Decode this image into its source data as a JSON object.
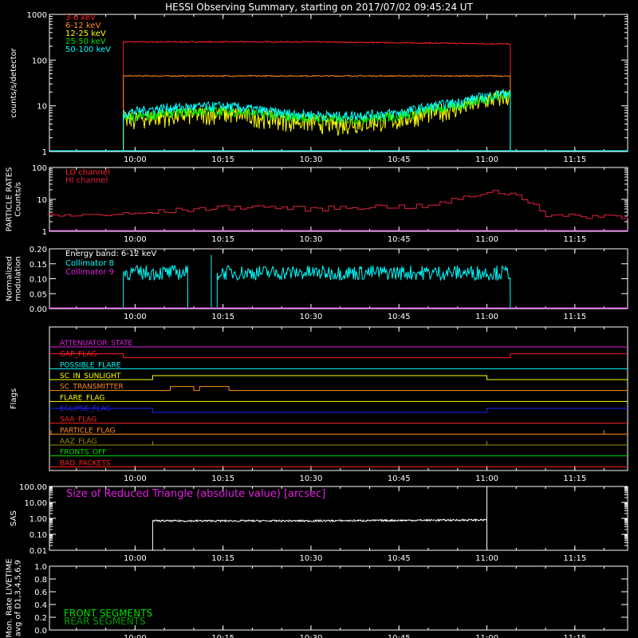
{
  "title": "HESSI Observing Summary, starting on 2017/07/02 09:45:24 UT",
  "colors": {
    "bg": "#000000",
    "axis": "#ffffff",
    "red": "#ff2020",
    "orange": "#ff8c1a",
    "yellow": "#ffff00",
    "green": "#00e000",
    "cyan": "#00ffff",
    "magenta": "#e020e0",
    "blue": "#2020ff",
    "olive": "#a09000",
    "crimson": "#e02040",
    "rate_line": "#e02020"
  },
  "time_ticks": [
    "10:00",
    "10:15",
    "10:30",
    "10:45",
    "11:00",
    "11:15"
  ],
  "chart_data": [
    {
      "id": "rates",
      "type": "line",
      "ylabel": "counts/s/detector",
      "yscale": "log",
      "ylim": [
        1,
        1000
      ],
      "yticks": [
        "1",
        "10",
        "100",
        "1000"
      ],
      "series": [
        {
          "name": "3-6 keV",
          "color_key": "red",
          "x": [
            "09:58",
            "10:30",
            "11:04"
          ],
          "y": [
            250,
            250,
            225
          ]
        },
        {
          "name": "6-12 keV",
          "color_key": "orange",
          "x": [
            "09:58",
            "10:30",
            "11:04"
          ],
          "y": [
            45,
            45,
            45
          ]
        },
        {
          "name": "12-25 keV",
          "color_key": "yellow",
          "x": [
            "09:58",
            "10:05",
            "10:15",
            "10:25",
            "10:35",
            "10:45",
            "10:55",
            "11:04"
          ],
          "y": [
            5,
            6,
            7,
            5,
            4,
            5,
            9,
            17
          ]
        },
        {
          "name": "25-50 keV",
          "color_key": "green",
          "x": [
            "09:58",
            "10:05",
            "10:15",
            "10:25",
            "10:35",
            "10:45",
            "10:55",
            "11:04"
          ],
          "y": [
            5,
            7,
            8,
            6,
            5,
            6,
            10,
            18
          ]
        },
        {
          "name": "50-100 keV",
          "color_key": "cyan",
          "x": [
            "09:58",
            "10:05",
            "10:15",
            "10:25",
            "10:35",
            "10:45",
            "10:55",
            "11:04"
          ],
          "y": [
            7,
            9,
            10,
            7,
            6,
            7,
            12,
            20
          ]
        }
      ]
    },
    {
      "id": "particle",
      "type": "line",
      "ylabel": "PARTICLE RATES Counts/s",
      "yscale": "log",
      "ylim": [
        1,
        100
      ],
      "yticks": [
        "1",
        "10",
        "100"
      ],
      "series": [
        {
          "name": "LO channel",
          "color_key": "red",
          "x": [],
          "y": []
        },
        {
          "name": "HI channel",
          "color_key": "crimson",
          "x": [
            "09:45",
            "10:00",
            "10:10",
            "10:20",
            "10:30",
            "10:40",
            "10:50",
            "10:57",
            "11:00",
            "11:04",
            "11:10",
            "11:24"
          ],
          "y": [
            3,
            3.5,
            5,
            6,
            5,
            6,
            6,
            12,
            18,
            15,
            3,
            3
          ]
        }
      ]
    },
    {
      "id": "modulation",
      "type": "line",
      "ylabel": "Normalized modulation",
      "ylim": [
        0,
        0.2
      ],
      "yticks": [
        "0.00",
        "0.05",
        "0.10",
        "0.15",
        "0.20"
      ],
      "annotation": "Energy band: 6-12 keV",
      "series": [
        {
          "name": "Collimator 8",
          "color_key": "cyan",
          "x": [
            "09:58",
            "10:09",
            "10:13",
            "11:04"
          ],
          "y": [
            0.12,
            0.12,
            0.12,
            0.12
          ]
        },
        {
          "name": "Collimator 9",
          "color_key": "magenta",
          "x": [
            "09:45",
            "11:24"
          ],
          "y": [
            0,
            0
          ]
        }
      ]
    },
    {
      "id": "flags",
      "type": "line",
      "ylabel": "Flags",
      "series": [
        {
          "name": "ATTENUATOR_STATE",
          "color_key": "magenta"
        },
        {
          "name": "GAP_FLAG",
          "color_key": "red"
        },
        {
          "name": "POSSIBLE_FLARE",
          "color_key": "cyan"
        },
        {
          "name": "SC_IN_SUNLIGHT",
          "color_key": "yellow"
        },
        {
          "name": "SC_TRANSMITTER",
          "color_key": "orange"
        },
        {
          "name": "FLARE_FLAG",
          "color_key": "yellow"
        },
        {
          "name": "ECLIPSE_FLAG",
          "color_key": "blue"
        },
        {
          "name": "SAA_FLAG",
          "color_key": "red"
        },
        {
          "name": "PARTICLE_FLAG",
          "color_key": "orange"
        },
        {
          "name": "AAZ_FLAG",
          "color_key": "olive"
        },
        {
          "name": "FRONTS_OFF",
          "color_key": "green"
        },
        {
          "name": "BAD_PACKETS",
          "color_key": "red"
        }
      ]
    },
    {
      "id": "sas",
      "type": "line",
      "ylabel": "SAS",
      "yscale": "log",
      "ylim": [
        0.01,
        100
      ],
      "yticks": [
        "0.01",
        "0.10",
        "1.00",
        "10.00",
        "100.00"
      ],
      "annotation": "Size of Reduced Triangle (absolute value) [arcsec]",
      "series": [
        {
          "name": "",
          "color_key": "axis",
          "x": [
            "10:03",
            "10:30",
            "11:00"
          ],
          "y": [
            0.7,
            0.7,
            0.8
          ]
        }
      ]
    },
    {
      "id": "livetime",
      "type": "line",
      "ylabel": "Mon. Rate LIVETIME avg of D1,3,4,5,6,9",
      "ylim": [
        0,
        1
      ],
      "yticks": [
        "0.0",
        "0.2",
        "0.4",
        "0.6",
        "0.8",
        "1.0"
      ],
      "series": [
        {
          "name": "FRONT SEGMENTS",
          "color_key": "green",
          "x": [],
          "y": []
        },
        {
          "name": "REAR SEGMENTS",
          "color_key": "green",
          "x": [],
          "y": []
        }
      ]
    }
  ]
}
